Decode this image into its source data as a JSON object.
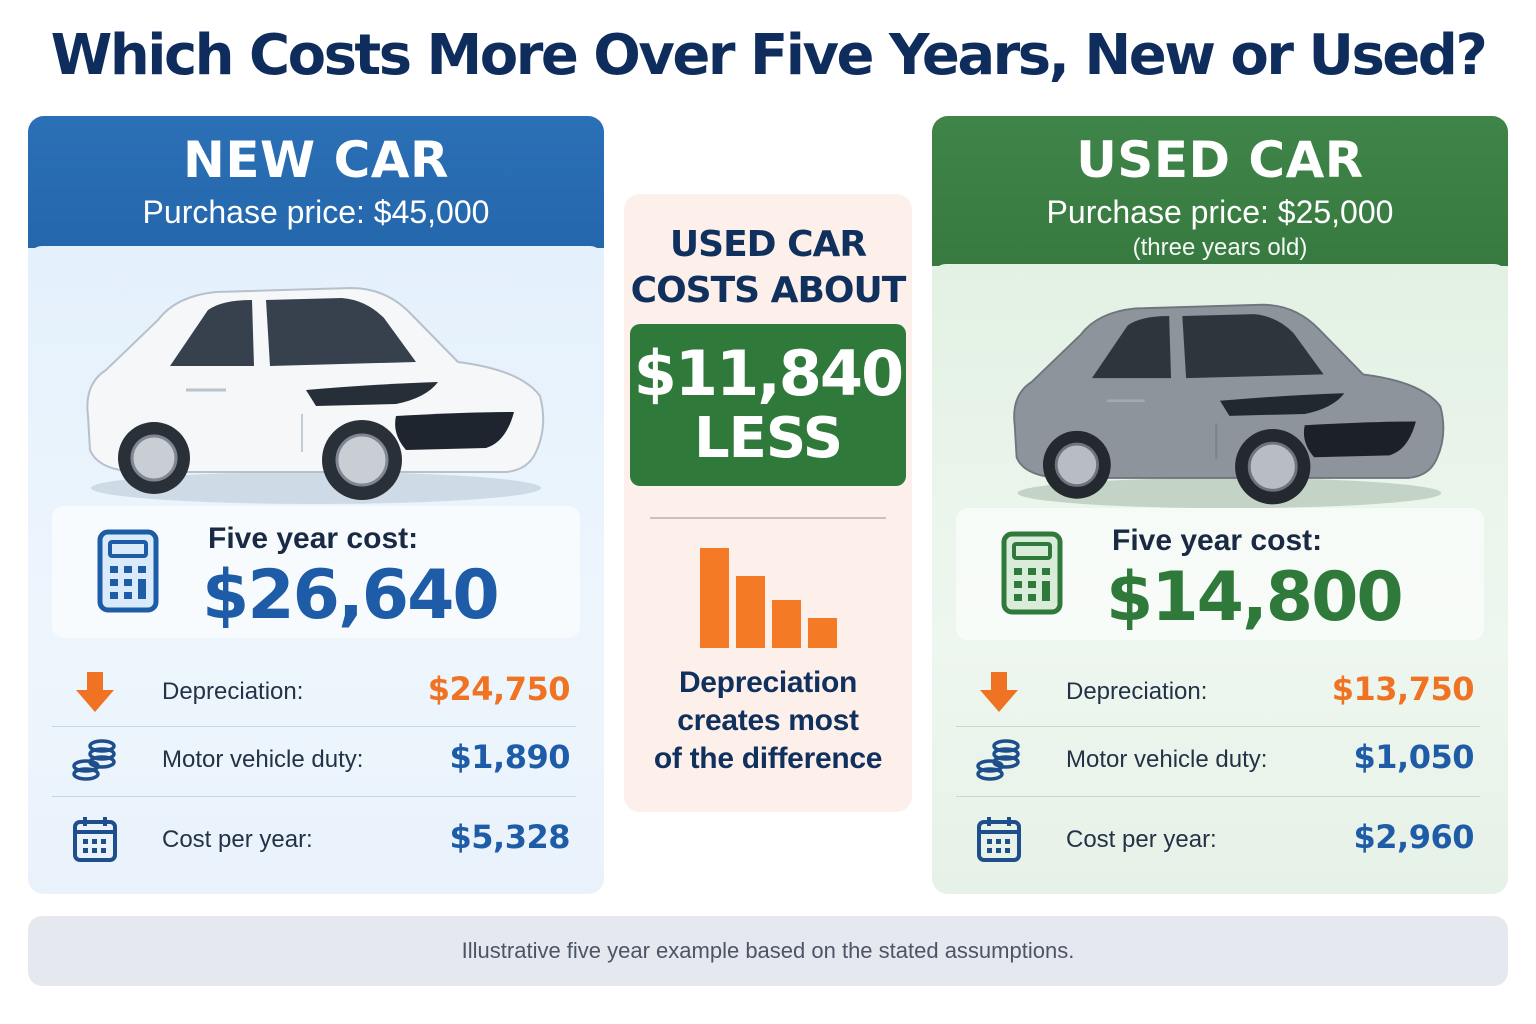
{
  "title": "Which Costs More Over Five Years, New or Used?",
  "new_car": {
    "heading": "NEW CAR",
    "purchase_price": "Purchase price: $45,000",
    "five_year_label": "Five year cost:",
    "five_year_value": "$26,640",
    "rows": [
      {
        "label": "Depreciation:",
        "value": "$24,750",
        "icon": "down-arrow-icon"
      },
      {
        "label": "Motor vehicle duty:",
        "value": "$1,890",
        "icon": "coins-icon"
      },
      {
        "label": "Cost per year:",
        "value": "$5,328",
        "icon": "calendar-icon"
      }
    ],
    "colors": {
      "header": "#2467ac",
      "car_body": "#f4f6f8"
    }
  },
  "used_car": {
    "heading": "USED CAR",
    "purchase_price": "Purchase price: $25,000",
    "note": "(three years old)",
    "five_year_label": "Five year cost:",
    "five_year_value": "$14,800",
    "rows": [
      {
        "label": "Depreciation:",
        "value": "$13,750",
        "icon": "down-arrow-icon"
      },
      {
        "label": "Motor vehicle duty:",
        "value": "$1,050",
        "icon": "coins-icon"
      },
      {
        "label": "Cost per year:",
        "value": "$2,960",
        "icon": "calendar-icon"
      }
    ],
    "colors": {
      "header": "#377a40",
      "car_body": "#8e949b"
    }
  },
  "middle": {
    "top_text": "USED CAR COSTS ABOUT",
    "top_line1": "USED CAR",
    "top_line2": "COSTS ABOUT",
    "amount": "$11,840",
    "less": "LESS",
    "bottom_line1": "Depreciation",
    "bottom_line2": "creates most",
    "bottom_line3": "of the difference",
    "bars_icon": "decreasing-bars-icon",
    "bar_levels": [
      1.0,
      0.72,
      0.48,
      0.3
    ]
  },
  "footer": "Illustrative five year example based on the stated assumptions."
}
